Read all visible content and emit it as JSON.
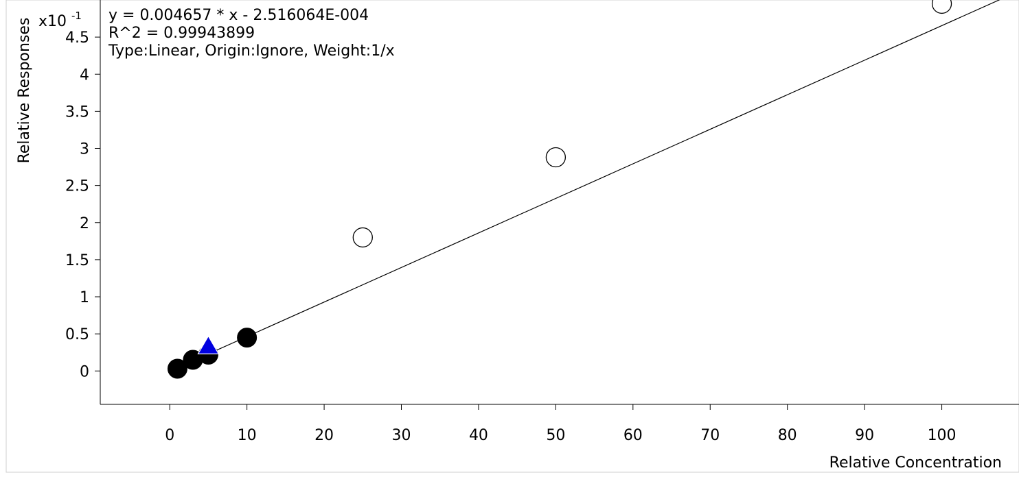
{
  "chart_data": {
    "type": "scatter",
    "xlabel": "Relative Concentration",
    "ylabel": "Relative Responses",
    "y_multiplier_label": "x10",
    "y_multiplier_exp": "-1",
    "xlim": [
      -9,
      110
    ],
    "ylim": [
      -0.45,
      5.0
    ],
    "x_ticks": [
      {
        "value": 0,
        "label": "0"
      },
      {
        "value": 10,
        "label": "10"
      },
      {
        "value": 20,
        "label": "20"
      },
      {
        "value": 30,
        "label": "30"
      },
      {
        "value": 40,
        "label": "40"
      },
      {
        "value": 50,
        "label": "50"
      },
      {
        "value": 60,
        "label": "60"
      },
      {
        "value": 70,
        "label": "70"
      },
      {
        "value": 80,
        "label": "80"
      },
      {
        "value": 90,
        "label": "90"
      },
      {
        "value": 100,
        "label": "100"
      }
    ],
    "y_ticks": [
      {
        "value": 0,
        "label": "0"
      },
      {
        "value": 0.5,
        "label": "0.5"
      },
      {
        "value": 1,
        "label": "1"
      },
      {
        "value": 1.5,
        "label": "1.5"
      },
      {
        "value": 2,
        "label": "2"
      },
      {
        "value": 2.5,
        "label": "2.5"
      },
      {
        "value": 3,
        "label": "3"
      },
      {
        "value": 3.5,
        "label": "3.5"
      },
      {
        "value": 4,
        "label": "4"
      },
      {
        "value": 4.5,
        "label": "4.5"
      }
    ],
    "annotations": [
      "y = 0.004657 * x  - 2.516064E-004",
      "R^2 = 0.99943899",
      "Type:Linear, Origin:Ignore, Weight:1/x"
    ],
    "fit_line": {
      "slope": 0.04657,
      "intercept": -0.002516064
    },
    "series": [
      {
        "marker": "filled-circle",
        "color": "#000000",
        "points": [
          [
            1,
            0.03
          ],
          [
            3,
            0.15
          ],
          [
            5,
            0.22
          ],
          [
            10,
            0.45
          ]
        ]
      },
      {
        "marker": "open-circle",
        "color": "#000000",
        "points": [
          [
            25,
            1.8
          ],
          [
            50,
            2.88
          ],
          [
            100,
            4.95
          ]
        ]
      },
      {
        "marker": "triangle",
        "color": "#0000e0",
        "points": [
          [
            5,
            0.35
          ]
        ]
      }
    ]
  }
}
